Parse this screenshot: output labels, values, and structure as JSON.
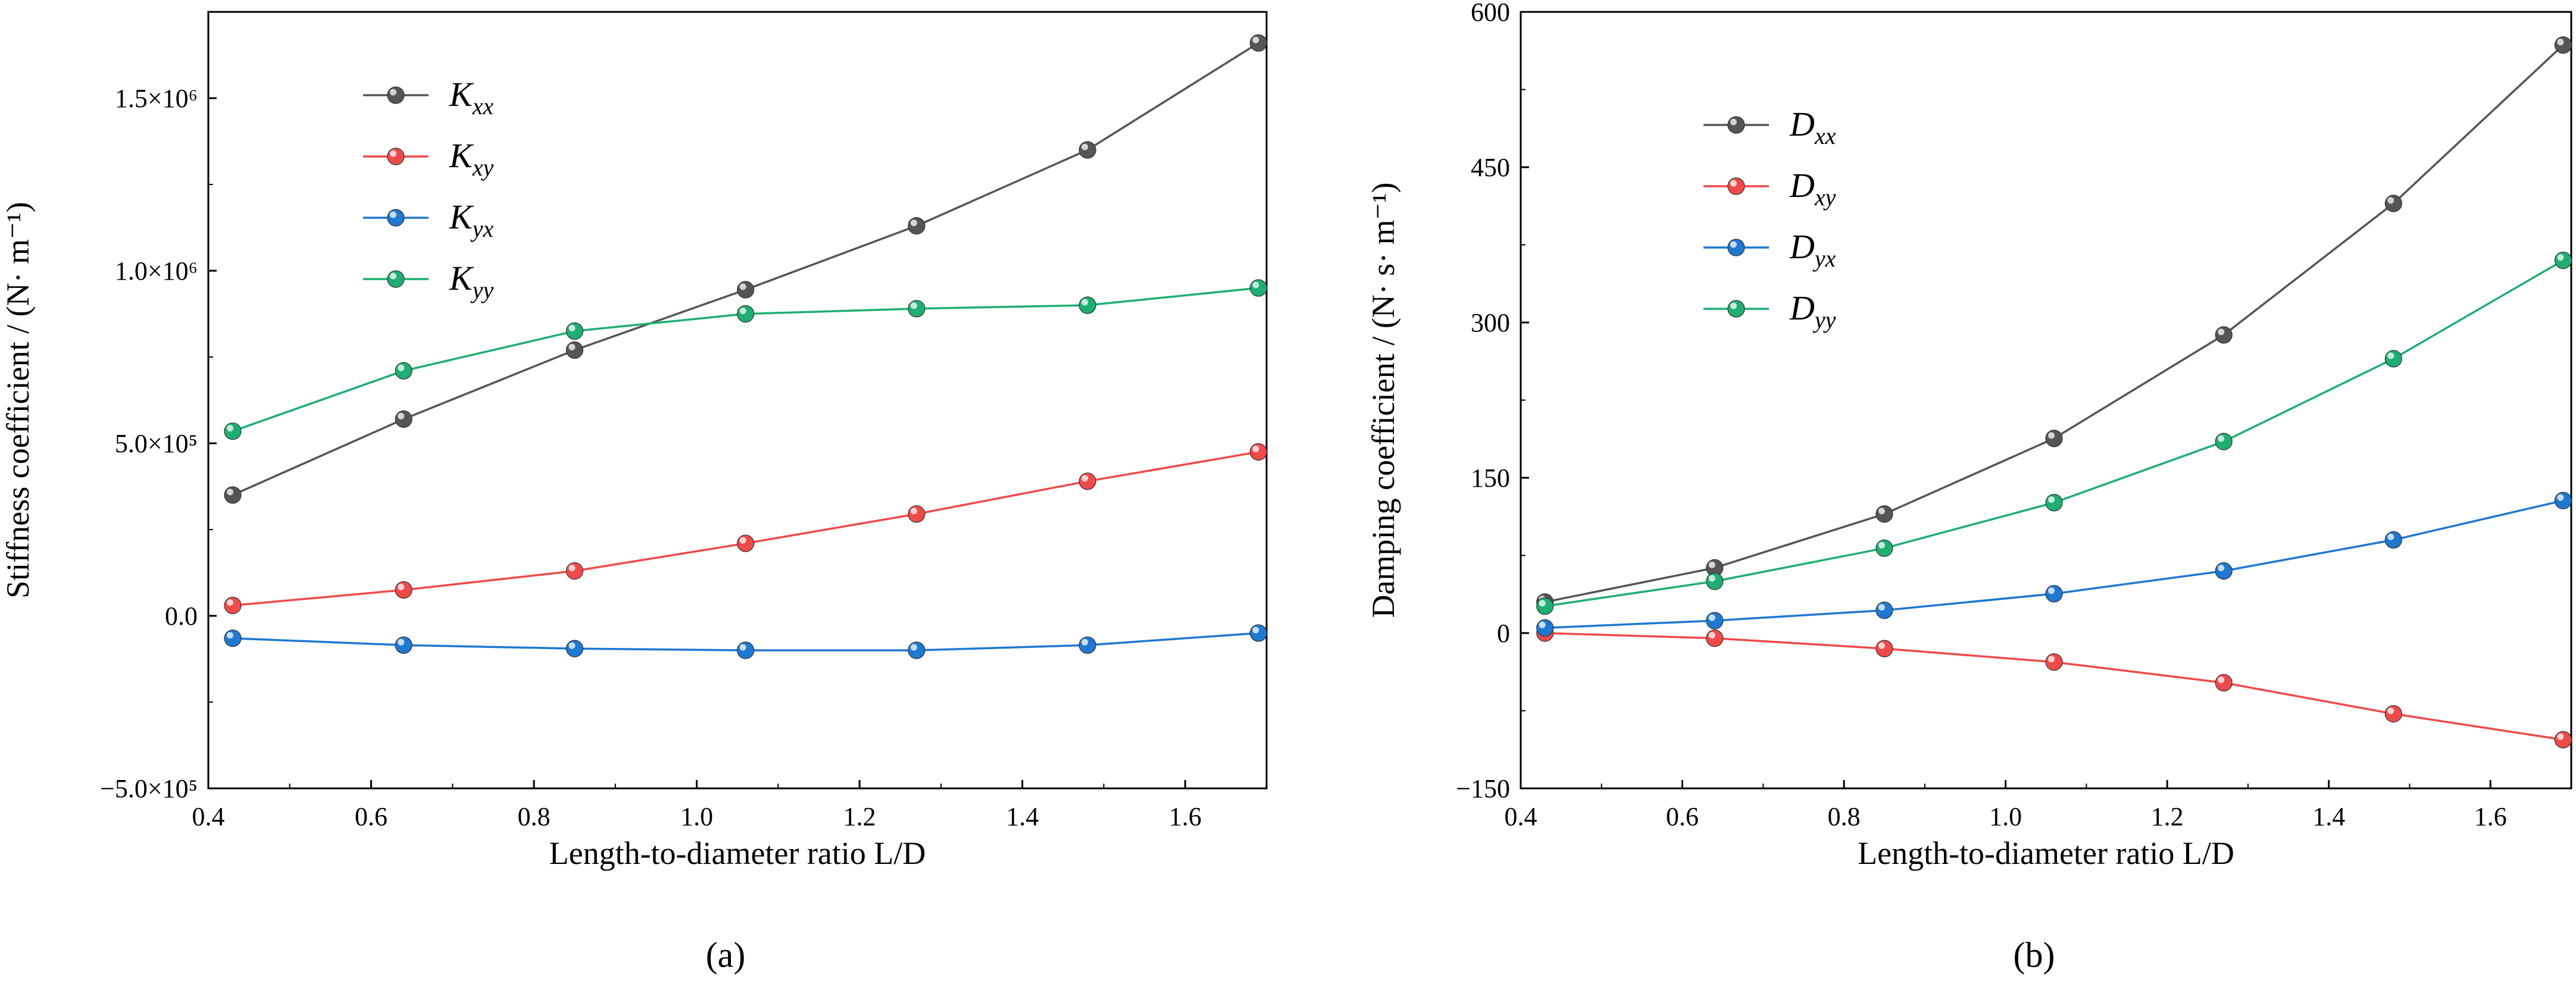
{
  "colors": {
    "xx": "#555555",
    "xy": "#ef4a4a",
    "yx": "#1f78d1",
    "yy": "#1fae72"
  },
  "chart_data": [
    {
      "type": "line",
      "caption": "(a)",
      "xlabel": "Length-to-diameter ratio L/D",
      "ylabel": "Stiffness coefficient / (N· m⁻¹)",
      "xlim": [
        0.4,
        1.7
      ],
      "ylim": [
        -500000,
        1750000
      ],
      "xticks": [
        0.4,
        0.6,
        0.8,
        1.0,
        1.2,
        1.4,
        1.6
      ],
      "xtick_labels": [
        "0.4",
        "0.6",
        "0.8",
        "1.0",
        "1.2",
        "1.4",
        "1.6"
      ],
      "yticks": [
        -500000,
        0,
        500000,
        1000000,
        1500000
      ],
      "ytick_labels": [
        "−5.0×10⁵",
        "0.0",
        "5.0×10⁵",
        "1.0×10⁶",
        "1.5×10⁶"
      ],
      "legend_position": "top-left",
      "x": [
        0.43,
        0.64,
        0.85,
        1.06,
        1.27,
        1.48,
        1.69
      ],
      "series": [
        {
          "name": "Kxx",
          "base": "K",
          "sub": "xx",
          "color_key": "xx",
          "values": [
            350000,
            570000,
            770000,
            945000,
            1130000,
            1350000,
            1660000
          ]
        },
        {
          "name": "Kxy",
          "base": "K",
          "sub": "xy",
          "color_key": "xy",
          "values": [
            30000,
            75000,
            130000,
            210000,
            295000,
            390000,
            475000
          ]
        },
        {
          "name": "Kyx",
          "base": "K",
          "sub": "yx",
          "color_key": "yx",
          "values": [
            -65000,
            -85000,
            -95000,
            -100000,
            -100000,
            -85000,
            -50000
          ]
        },
        {
          "name": "Kyy",
          "base": "K",
          "sub": "yy",
          "color_key": "yy",
          "values": [
            535000,
            710000,
            825000,
            875000,
            890000,
            900000,
            950000
          ]
        }
      ]
    },
    {
      "type": "line",
      "caption": "(b)",
      "xlabel": "Length-to-diameter ratio L/D",
      "ylabel": "Damping coefficient / (N· s· m⁻¹)",
      "xlim": [
        0.4,
        1.7
      ],
      "ylim": [
        -150,
        600
      ],
      "xticks": [
        0.4,
        0.6,
        0.8,
        1.0,
        1.2,
        1.4,
        1.6
      ],
      "xtick_labels": [
        "0.4",
        "0.6",
        "0.8",
        "1.0",
        "1.2",
        "1.4",
        "1.6"
      ],
      "yticks": [
        -150,
        0,
        150,
        300,
        450,
        600
      ],
      "ytick_labels": [
        "−150",
        "0",
        "150",
        "300",
        "450",
        "600"
      ],
      "legend_position": "top-left",
      "x": [
        0.43,
        0.64,
        0.85,
        1.06,
        1.27,
        1.48,
        1.69
      ],
      "series": [
        {
          "name": "Dxx",
          "base": "D",
          "sub": "xx",
          "color_key": "xx",
          "values": [
            30,
            63,
            115,
            188,
            288,
            415,
            568
          ]
        },
        {
          "name": "Dxy",
          "base": "D",
          "sub": "xy",
          "color_key": "xy",
          "values": [
            0,
            -5,
            -15,
            -28,
            -48,
            -78,
            -103
          ]
        },
        {
          "name": "Dyx",
          "base": "D",
          "sub": "yx",
          "color_key": "yx",
          "values": [
            5,
            12,
            22,
            38,
            60,
            90,
            128
          ]
        },
        {
          "name": "Dyy",
          "base": "D",
          "sub": "yy",
          "color_key": "yy",
          "values": [
            26,
            50,
            82,
            126,
            185,
            265,
            360
          ]
        }
      ]
    }
  ]
}
